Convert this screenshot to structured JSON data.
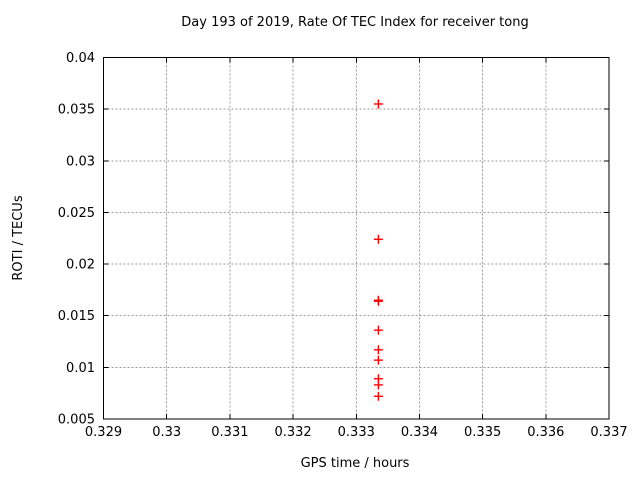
{
  "chart_data": {
    "type": "scatter",
    "title": "Day 193 of 2019, Rate Of TEC Index for receiver tong",
    "xlabel": "GPS time / hours",
    "ylabel": "ROTI / TECUs",
    "xlim": [
      0.329,
      0.337
    ],
    "ylim": [
      0.005,
      0.04
    ],
    "grid": true,
    "legend": "none",
    "marker": {
      "shape": "plus",
      "color": "#ff0000",
      "size": 9
    },
    "xticks": [
      {
        "v": 0.329,
        "label": "0.329"
      },
      {
        "v": 0.33,
        "label": "0.33"
      },
      {
        "v": 0.331,
        "label": "0.331"
      },
      {
        "v": 0.332,
        "label": "0.332"
      },
      {
        "v": 0.333,
        "label": "0.333"
      },
      {
        "v": 0.334,
        "label": "0.334"
      },
      {
        "v": 0.335,
        "label": "0.335"
      },
      {
        "v": 0.336,
        "label": "0.336"
      },
      {
        "v": 0.337,
        "label": "0.337"
      }
    ],
    "yticks": [
      {
        "v": 0.005,
        "label": "0.005"
      },
      {
        "v": 0.01,
        "label": "0.01"
      },
      {
        "v": 0.015,
        "label": "0.015"
      },
      {
        "v": 0.02,
        "label": "0.02"
      },
      {
        "v": 0.025,
        "label": "0.025"
      },
      {
        "v": 0.03,
        "label": "0.03"
      },
      {
        "v": 0.035,
        "label": "0.035"
      },
      {
        "v": 0.04,
        "label": "0.04"
      }
    ],
    "series": [
      {
        "name": "ROTI",
        "points": [
          {
            "x": 0.33335,
            "y": 0.0355
          },
          {
            "x": 0.33335,
            "y": 0.0224
          },
          {
            "x": 0.33335,
            "y": 0.0165
          },
          {
            "x": 0.33335,
            "y": 0.0164
          },
          {
            "x": 0.33335,
            "y": 0.0136
          },
          {
            "x": 0.33335,
            "y": 0.0117
          },
          {
            "x": 0.33335,
            "y": 0.0107
          },
          {
            "x": 0.33335,
            "y": 0.0089
          },
          {
            "x": 0.33335,
            "y": 0.0083
          },
          {
            "x": 0.33335,
            "y": 0.0072
          }
        ]
      }
    ]
  },
  "colors": {
    "background": "#ffffff",
    "border": "#000000",
    "grid": "#999999",
    "text": "#000000",
    "marker": "#ff0000"
  }
}
